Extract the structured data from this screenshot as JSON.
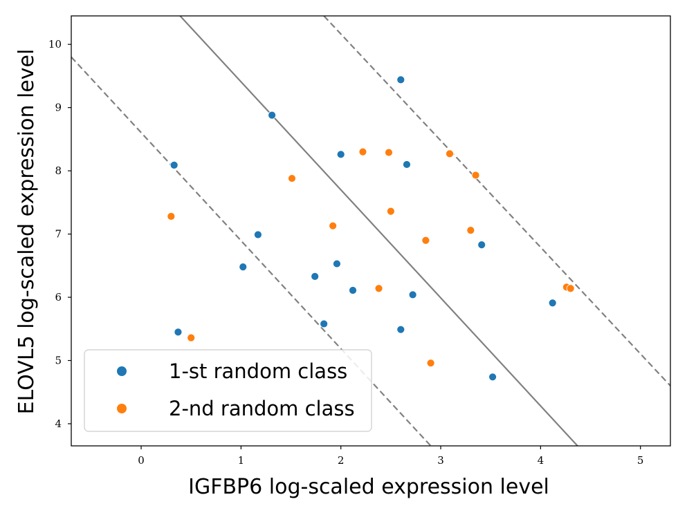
{
  "chart_data": {
    "type": "scatter",
    "xlabel": "IGFBP6 log-scaled expression level",
    "ylabel": "ELOVL5 log-scaled expression level",
    "xlim": [
      -0.7,
      5.3
    ],
    "ylim": [
      3.65,
      10.45
    ],
    "xticks": [
      0,
      1,
      2,
      3,
      4,
      5
    ],
    "yticks": [
      4,
      5,
      6,
      7,
      8,
      9,
      10
    ],
    "grid": false,
    "legend": "lower-left",
    "series": [
      {
        "name": "1-st random class",
        "color": "#1f77b4",
        "points": [
          [
            2.6,
            9.44
          ],
          [
            1.31,
            8.88
          ],
          [
            0.33,
            8.09
          ],
          [
            2.0,
            8.26
          ],
          [
            2.66,
            8.1
          ],
          [
            1.17,
            6.99
          ],
          [
            1.02,
            6.48
          ],
          [
            1.96,
            6.53
          ],
          [
            1.74,
            6.33
          ],
          [
            2.12,
            6.11
          ],
          [
            2.72,
            6.04
          ],
          [
            3.41,
            6.83
          ],
          [
            4.12,
            5.91
          ],
          [
            1.83,
            5.58
          ],
          [
            0.37,
            5.45
          ],
          [
            2.6,
            5.49
          ],
          [
            3.52,
            4.74
          ]
        ]
      },
      {
        "name": "2-nd random class",
        "color": "#ff7f0e",
        "points": [
          [
            2.22,
            8.3
          ],
          [
            2.48,
            8.29
          ],
          [
            3.09,
            8.27
          ],
          [
            1.51,
            7.88
          ],
          [
            3.35,
            7.93
          ],
          [
            0.3,
            7.28
          ],
          [
            1.92,
            7.13
          ],
          [
            2.5,
            7.36
          ],
          [
            3.3,
            7.06
          ],
          [
            2.85,
            6.9
          ],
          [
            2.38,
            6.14
          ],
          [
            4.26,
            6.16
          ],
          [
            4.3,
            6.14
          ],
          [
            0.5,
            5.36
          ],
          [
            2.9,
            4.96
          ]
        ]
      }
    ],
    "lines": [
      {
        "style": "solid",
        "color": "#808080",
        "points": [
          [
            0.39,
            10.45
          ],
          [
            4.37,
            3.65
          ]
        ]
      },
      {
        "style": "dashed",
        "color": "#808080",
        "points": [
          [
            -0.7,
            9.8
          ],
          [
            2.9,
            3.65
          ]
        ]
      },
      {
        "style": "dashed",
        "color": "#808080",
        "points": [
          [
            1.83,
            10.45
          ],
          [
            5.3,
            4.6
          ]
        ]
      }
    ]
  }
}
